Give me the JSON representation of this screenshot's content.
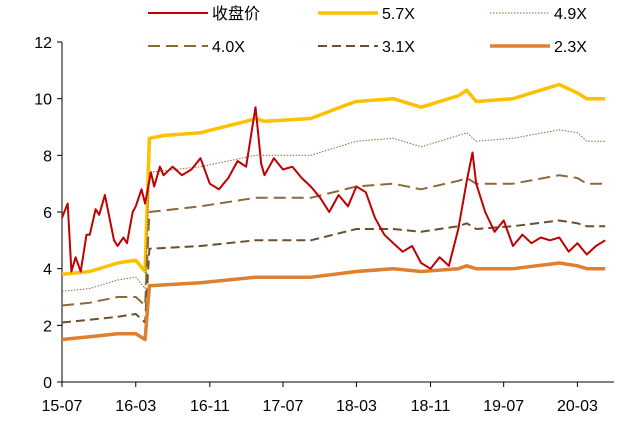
{
  "chart_data": {
    "type": "line",
    "title": "",
    "xlabel": "",
    "ylabel": "",
    "ylim": [
      0,
      12
    ],
    "y_ticks": [
      "0",
      "2",
      "4",
      "6",
      "8",
      "10",
      "12"
    ],
    "x_tick_labels": [
      "15-07",
      "16-03",
      "16-11",
      "17-07",
      "18-03",
      "18-11",
      "19-07",
      "20-03"
    ],
    "grid": false,
    "legend_position": "top",
    "series": [
      {
        "name": "收盘价",
        "color": "#C00000",
        "style": "solid",
        "values": [
          {
            "x": "2015-07",
            "y": 5.8
          },
          {
            "x": "2015-07-20",
            "y": 6.3
          },
          {
            "x": "2015-08",
            "y": 3.9
          },
          {
            "x": "2015-08-15",
            "y": 4.4
          },
          {
            "x": "2015-09",
            "y": 3.9
          },
          {
            "x": "2015-09-20",
            "y": 5.2
          },
          {
            "x": "2015-10",
            "y": 5.2
          },
          {
            "x": "2015-10-20",
            "y": 6.1
          },
          {
            "x": "2015-11",
            "y": 5.9
          },
          {
            "x": "2015-11-20",
            "y": 6.6
          },
          {
            "x": "2015-12",
            "y": 6.0
          },
          {
            "x": "2015-12-20",
            "y": 5.0
          },
          {
            "x": "2016-01",
            "y": 4.8
          },
          {
            "x": "2016-01-20",
            "y": 5.1
          },
          {
            "x": "2016-02",
            "y": 4.9
          },
          {
            "x": "2016-02-20",
            "y": 6.0
          },
          {
            "x": "2016-03",
            "y": 6.2
          },
          {
            "x": "2016-03-20",
            "y": 6.8
          },
          {
            "x": "2016-04",
            "y": 6.3
          },
          {
            "x": "2016-04-20",
            "y": 7.4
          },
          {
            "x": "2016-05",
            "y": 6.9
          },
          {
            "x": "2016-05-20",
            "y": 7.6
          },
          {
            "x": "2016-06",
            "y": 7.3
          },
          {
            "x": "2016-07",
            "y": 7.6
          },
          {
            "x": "2016-08",
            "y": 7.3
          },
          {
            "x": "2016-09",
            "y": 7.5
          },
          {
            "x": "2016-10",
            "y": 7.9
          },
          {
            "x": "2016-11",
            "y": 7.0
          },
          {
            "x": "2016-12",
            "y": 6.8
          },
          {
            "x": "2017-01",
            "y": 7.2
          },
          {
            "x": "2017-02",
            "y": 7.8
          },
          {
            "x": "2017-03",
            "y": 7.6
          },
          {
            "x": "2017-04",
            "y": 9.7
          },
          {
            "x": "2017-04-20",
            "y": 7.7
          },
          {
            "x": "2017-05",
            "y": 7.3
          },
          {
            "x": "2017-06",
            "y": 7.9
          },
          {
            "x": "2017-07",
            "y": 7.5
          },
          {
            "x": "2017-08",
            "y": 7.6
          },
          {
            "x": "2017-09",
            "y": 7.2
          },
          {
            "x": "2017-10",
            "y": 6.9
          },
          {
            "x": "2017-11",
            "y": 6.5
          },
          {
            "x": "2017-12",
            "y": 6.0
          },
          {
            "x": "2018-01",
            "y": 6.6
          },
          {
            "x": "2018-02",
            "y": 6.2
          },
          {
            "x": "2018-03",
            "y": 6.9
          },
          {
            "x": "2018-04",
            "y": 6.7
          },
          {
            "x": "2018-05",
            "y": 5.8
          },
          {
            "x": "2018-06",
            "y": 5.2
          },
          {
            "x": "2018-07",
            "y": 4.9
          },
          {
            "x": "2018-08",
            "y": 4.6
          },
          {
            "x": "2018-09",
            "y": 4.8
          },
          {
            "x": "2018-10",
            "y": 4.2
          },
          {
            "x": "2018-11",
            "y": 4.0
          },
          {
            "x": "2018-12",
            "y": 4.4
          },
          {
            "x": "2019-01",
            "y": 4.1
          },
          {
            "x": "2019-02",
            "y": 5.4
          },
          {
            "x": "2019-03",
            "y": 7.1
          },
          {
            "x": "2019-03-20",
            "y": 8.1
          },
          {
            "x": "2019-04",
            "y": 7.0
          },
          {
            "x": "2019-05",
            "y": 6.0
          },
          {
            "x": "2019-06",
            "y": 5.3
          },
          {
            "x": "2019-07",
            "y": 5.7
          },
          {
            "x": "2019-08",
            "y": 4.8
          },
          {
            "x": "2019-09",
            "y": 5.2
          },
          {
            "x": "2019-10",
            "y": 4.9
          },
          {
            "x": "2019-11",
            "y": 5.1
          },
          {
            "x": "2019-12",
            "y": 5.0
          },
          {
            "x": "2020-01",
            "y": 5.1
          },
          {
            "x": "2020-02",
            "y": 4.6
          },
          {
            "x": "2020-03",
            "y": 4.9
          },
          {
            "x": "2020-04",
            "y": 4.5
          },
          {
            "x": "2020-05",
            "y": 4.8
          },
          {
            "x": "2020-06",
            "y": 5.0
          }
        ]
      },
      {
        "name": "5.7X",
        "color": "#FFC000",
        "style": "solid-thick",
        "values": [
          {
            "x": "2015-07",
            "y": 3.8
          },
          {
            "x": "2015-10",
            "y": 3.9
          },
          {
            "x": "2016-01",
            "y": 4.2
          },
          {
            "x": "2016-03",
            "y": 4.3
          },
          {
            "x": "2016-04",
            "y": 3.9
          },
          {
            "x": "2016-04-15",
            "y": 8.6
          },
          {
            "x": "2016-06",
            "y": 8.7
          },
          {
            "x": "2016-10",
            "y": 8.8
          },
          {
            "x": "2017-03",
            "y": 9.2
          },
          {
            "x": "2017-04",
            "y": 9.3
          },
          {
            "x": "2017-05",
            "y": 9.2
          },
          {
            "x": "2017-10",
            "y": 9.3
          },
          {
            "x": "2018-02",
            "y": 9.8
          },
          {
            "x": "2018-03",
            "y": 9.9
          },
          {
            "x": "2018-07",
            "y": 10.0
          },
          {
            "x": "2018-10",
            "y": 9.7
          },
          {
            "x": "2019-02",
            "y": 10.1
          },
          {
            "x": "2019-03",
            "y": 10.3
          },
          {
            "x": "2019-04",
            "y": 9.9
          },
          {
            "x": "2019-08",
            "y": 10.0
          },
          {
            "x": "2019-12",
            "y": 10.4
          },
          {
            "x": "2020-01",
            "y": 10.5
          },
          {
            "x": "2020-03",
            "y": 10.2
          },
          {
            "x": "2020-04",
            "y": 10.0
          },
          {
            "x": "2020-06",
            "y": 10.0
          }
        ]
      },
      {
        "name": "4.9X",
        "color": "#8B6A3A",
        "style": "dotted",
        "values": [
          {
            "x": "2015-07",
            "y": 3.2
          },
          {
            "x": "2015-10",
            "y": 3.3
          },
          {
            "x": "2016-01",
            "y": 3.6
          },
          {
            "x": "2016-03",
            "y": 3.7
          },
          {
            "x": "2016-04",
            "y": 3.3
          },
          {
            "x": "2016-04-15",
            "y": 7.4
          },
          {
            "x": "2016-10",
            "y": 7.6
          },
          {
            "x": "2017-04",
            "y": 8.0
          },
          {
            "x": "2017-10",
            "y": 8.0
          },
          {
            "x": "2018-03",
            "y": 8.5
          },
          {
            "x": "2018-07",
            "y": 8.6
          },
          {
            "x": "2018-10",
            "y": 8.3
          },
          {
            "x": "2019-02",
            "y": 8.7
          },
          {
            "x": "2019-03",
            "y": 8.8
          },
          {
            "x": "2019-04",
            "y": 8.5
          },
          {
            "x": "2019-08",
            "y": 8.6
          },
          {
            "x": "2020-01",
            "y": 8.9
          },
          {
            "x": "2020-03",
            "y": 8.8
          },
          {
            "x": "2020-04",
            "y": 8.5
          },
          {
            "x": "2020-06",
            "y": 8.5
          }
        ]
      },
      {
        "name": "4.0X",
        "color": "#8B6A3A",
        "style": "long-dash",
        "values": [
          {
            "x": "2015-07",
            "y": 2.7
          },
          {
            "x": "2015-10",
            "y": 2.8
          },
          {
            "x": "2016-01",
            "y": 3.0
          },
          {
            "x": "2016-03",
            "y": 3.0
          },
          {
            "x": "2016-04",
            "y": 2.7
          },
          {
            "x": "2016-04-15",
            "y": 6.0
          },
          {
            "x": "2016-10",
            "y": 6.2
          },
          {
            "x": "2017-04",
            "y": 6.5
          },
          {
            "x": "2017-10",
            "y": 6.5
          },
          {
            "x": "2018-03",
            "y": 6.9
          },
          {
            "x": "2018-07",
            "y": 7.0
          },
          {
            "x": "2018-10",
            "y": 6.8
          },
          {
            "x": "2019-02",
            "y": 7.1
          },
          {
            "x": "2019-03",
            "y": 7.2
          },
          {
            "x": "2019-04",
            "y": 7.0
          },
          {
            "x": "2019-08",
            "y": 7.0
          },
          {
            "x": "2020-01",
            "y": 7.3
          },
          {
            "x": "2020-03",
            "y": 7.2
          },
          {
            "x": "2020-04",
            "y": 7.0
          },
          {
            "x": "2020-06",
            "y": 7.0
          }
        ]
      },
      {
        "name": "3.1X",
        "color": "#6B5030",
        "style": "dash",
        "values": [
          {
            "x": "2015-07",
            "y": 2.1
          },
          {
            "x": "2015-10",
            "y": 2.2
          },
          {
            "x": "2016-01",
            "y": 2.3
          },
          {
            "x": "2016-03",
            "y": 2.4
          },
          {
            "x": "2016-04",
            "y": 2.1
          },
          {
            "x": "2016-04-15",
            "y": 4.7
          },
          {
            "x": "2016-10",
            "y": 4.8
          },
          {
            "x": "2017-04",
            "y": 5.0
          },
          {
            "x": "2017-10",
            "y": 5.0
          },
          {
            "x": "2018-03",
            "y": 5.4
          },
          {
            "x": "2018-07",
            "y": 5.4
          },
          {
            "x": "2018-10",
            "y": 5.3
          },
          {
            "x": "2019-02",
            "y": 5.5
          },
          {
            "x": "2019-03",
            "y": 5.6
          },
          {
            "x": "2019-04",
            "y": 5.4
          },
          {
            "x": "2019-08",
            "y": 5.5
          },
          {
            "x": "2020-01",
            "y": 5.7
          },
          {
            "x": "2020-03",
            "y": 5.6
          },
          {
            "x": "2020-04",
            "y": 5.5
          },
          {
            "x": "2020-06",
            "y": 5.5
          }
        ]
      },
      {
        "name": "2.3X",
        "color": "#E07F30",
        "style": "solid-thick",
        "values": [
          {
            "x": "2015-07",
            "y": 1.5
          },
          {
            "x": "2015-10",
            "y": 1.6
          },
          {
            "x": "2016-01",
            "y": 1.7
          },
          {
            "x": "2016-03",
            "y": 1.7
          },
          {
            "x": "2016-04",
            "y": 1.5
          },
          {
            "x": "2016-04-15",
            "y": 3.4
          },
          {
            "x": "2016-10",
            "y": 3.5
          },
          {
            "x": "2017-04",
            "y": 3.7
          },
          {
            "x": "2017-10",
            "y": 3.7
          },
          {
            "x": "2018-03",
            "y": 3.9
          },
          {
            "x": "2018-07",
            "y": 4.0
          },
          {
            "x": "2018-10",
            "y": 3.9
          },
          {
            "x": "2019-02",
            "y": 4.0
          },
          {
            "x": "2019-03",
            "y": 4.1
          },
          {
            "x": "2019-04",
            "y": 4.0
          },
          {
            "x": "2019-08",
            "y": 4.0
          },
          {
            "x": "2020-01",
            "y": 4.2
          },
          {
            "x": "2020-03",
            "y": 4.1
          },
          {
            "x": "2020-04",
            "y": 4.0
          },
          {
            "x": "2020-06",
            "y": 4.0
          }
        ]
      }
    ]
  }
}
